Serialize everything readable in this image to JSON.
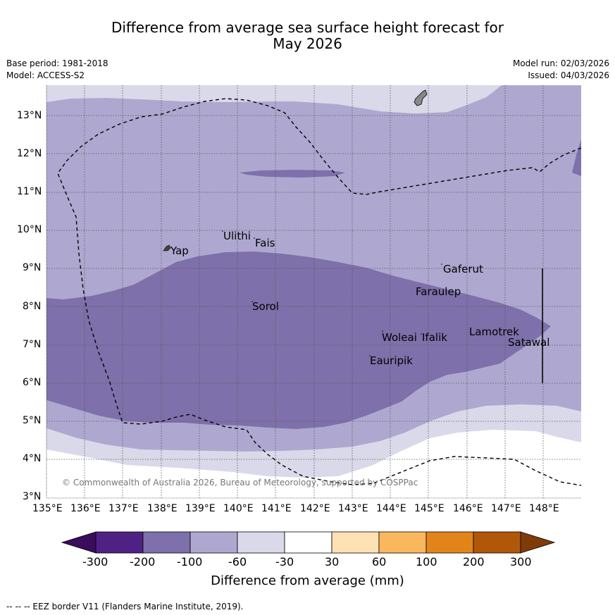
{
  "title_line1": "Difference from average sea surface height forecast for",
  "title_line2": "May 2026",
  "meta": {
    "base_period": "Base period: 1981-2018",
    "model": "Model: ACCESS-S2",
    "model_run": "Model run: 02/03/2026",
    "issued": "Issued: 04/03/2026"
  },
  "lat_ticks": [
    "13°N",
    "12°N",
    "11°N",
    "10°N",
    "9°N",
    "8°N",
    "7°N",
    "6°N",
    "5°N",
    "4°N",
    "3°N"
  ],
  "lon_ticks": [
    "135°E",
    "136°E",
    "137°E",
    "138°E",
    "139°E",
    "140°E",
    "141°E",
    "142°E",
    "143°E",
    "144°E",
    "145°E",
    "146°E",
    "147°E",
    "148°E"
  ],
  "places": {
    "yap": "Yap",
    "ulithi": "Ulithi",
    "fais": "Fais",
    "gaferut": "Gaferut",
    "faraulep": "Faraulep",
    "sorol": "Sorol",
    "woleai": "Woleai",
    "ifalik": "Ifalik",
    "lamotrek": "Lamotrek",
    "satawal": "Satawal",
    "eauripik": "Eauripik"
  },
  "copyright": "© Commonwealth of Australia 2026, Bureau of Meteorology, supported by COSPPac",
  "colorbar": {
    "labels": [
      "-300",
      "-200",
      "-100",
      "-60",
      "-30",
      "30",
      "60",
      "100",
      "200",
      "300"
    ],
    "colors": [
      "#4f2184",
      "#7e70aa",
      "#aea8d0",
      "#d9d9ea",
      "#ffffff",
      "#fee1b5",
      "#fbb75d",
      "#e1851b",
      "#b15709"
    ],
    "under_color": "#3a0c5c",
    "over_color": "#7f3b08",
    "title": "Difference from average (mm)"
  },
  "footer": "--  --  -- EEZ border V11 (Flanders Marine Institute, 2019)."
}
